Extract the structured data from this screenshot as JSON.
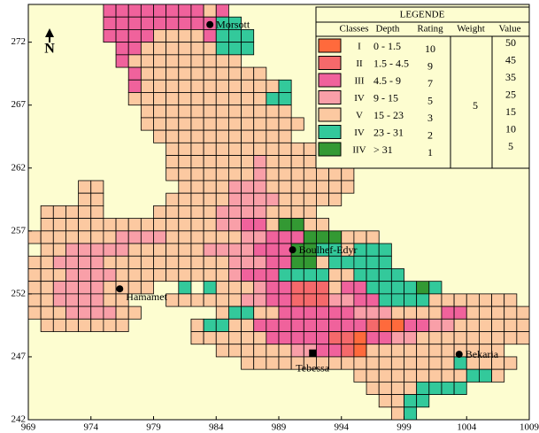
{
  "map": {
    "xlim": [
      969,
      1009
    ],
    "ylim": [
      242,
      275
    ],
    "xticks": [
      969,
      974,
      979,
      984,
      989,
      994,
      999,
      1004,
      1009
    ],
    "yticks": [
      242,
      247,
      252,
      257,
      262,
      267,
      272
    ],
    "north": "N",
    "legend": {
      "title": "LEGENDE",
      "headers": [
        "Classes",
        "Depth",
        "Rating",
        "Weight",
        "Value"
      ],
      "weight": 5,
      "rows": [
        {
          "class": "I",
          "depth": "0 - 1.5",
          "rating": 10,
          "value": 50,
          "color": "#ff6a3c"
        },
        {
          "class": "II",
          "depth": "1.5 - 4.5",
          "rating": 9,
          "value": 45,
          "color": "#f5696b"
        },
        {
          "class": "III",
          "depth": "4.5 - 9",
          "rating": 7,
          "value": 35,
          "color": "#f0629c"
        },
        {
          "class": "IV",
          "depth": "9 - 15",
          "rating": 5,
          "value": 25,
          "color": "#f99fa8"
        },
        {
          "class": "V",
          "depth": "15 - 23",
          "rating": 3,
          "value": 15,
          "color": "#fcc9a1"
        },
        {
          "class": "IV",
          "depth": "23 - 31",
          "rating": 2,
          "value": 10,
          "color": "#33c99b"
        },
        {
          "class": "IIV",
          "depth": "> 31",
          "rating": 1,
          "value": 5,
          "color": "#339933"
        }
      ]
    },
    "grid": [
      {
        "y": 274,
        "x0": 975,
        "cells": "3333333353"
      },
      {
        "y": 273,
        "x0": 975,
        "cells": "33333333366"
      },
      {
        "y": 272,
        "x0": 975,
        "cells": "333355553666"
      },
      {
        "y": 271,
        "x0": 976,
        "cells": "33555555666"
      },
      {
        "y": 270,
        "x0": 976,
        "cells": "3555555555"
      },
      {
        "y": 269,
        "x0": 977,
        "cells": "35555555555"
      },
      {
        "y": 268,
        "x0": 977,
        "cells": "3555555555556"
      },
      {
        "y": 267,
        "x0": 977,
        "cells": "5555555555566"
      },
      {
        "y": 266,
        "x0": 978,
        "cells": "555555555555"
      },
      {
        "y": 265,
        "x0": 978,
        "cells": "5555555555555"
      },
      {
        "y": 264,
        "x0": 979,
        "cells": "55555555555"
      },
      {
        "y": 263,
        "x0": 980,
        "cells": "5555555555555"
      },
      {
        "y": 262,
        "x0": 980,
        "cells": "55555554555555"
      },
      {
        "y": 261,
        "x0": 980,
        "cells": "555555545555555"
      },
      {
        "y": 260,
        "x0": 973,
        "cells": "55......55554445555555"
      },
      {
        "y": 259,
        "x0": 973,
        "cells": "55.....55555444455555"
      },
      {
        "y": 258,
        "x0": 970,
        "cells": "55555....5555544445555"
      },
      {
        "y": 257,
        "x0": 970,
        "cells": "55555555555555443357755"
      },
      {
        "y": 256,
        "x0": 969,
        "cells": "5555555444455555544333777555"
      },
      {
        "y": 255,
        "x0": 970,
        "cells": "5544444555555444433377665666"
      },
      {
        "y": 254,
        "x0": 969,
        "cells": "55444455555555554443377566666"
      },
      {
        "y": 253,
        "x0": 969,
        "cells": "555444455555555543336666556666"
      },
      {
        "y": 252,
        "x0": 969,
        "cells": "5544445555..6.6555433222533666676"
      },
      {
        "y": 251,
        "x0": 969,
        "cells": "55444455...5555554433222443366665555555"
      },
      {
        "y": 250,
        "x0": 969,
        "cells": "555444455......5665533333344455553355555"
      },
      {
        "y": 249,
        "x0": 970,
        "cells": "5555555.....566553333333332113344555555"
      },
      {
        "y": 248,
        "x0": 982,
        "cells": "555555333332213344555555555"
      },
      {
        "y": 247,
        "x0": 984,
        "cells": "55555544332155555555555"
      },
      {
        "y": 246,
        "x0": 986,
        "cells": "5555555555555555565555"
      },
      {
        "y": 245,
        "x0": 995,
        "cells": "555555555665"
      },
      {
        "y": 244,
        "x0": 996,
        "cells": "55556666"
      },
      {
        "y": 243,
        "x0": 997,
        "cells": "5566"
      },
      {
        "y": 242,
        "x0": 998,
        "cells": "56"
      }
    ],
    "places": [
      {
        "name": "Morsott",
        "x": 983.5,
        "y": 273.4,
        "marker": "circle"
      },
      {
        "name": "Boulhef-Edyr",
        "x": 990.1,
        "y": 255.5,
        "marker": "circle"
      },
      {
        "name": "Hamamet",
        "x": 976.3,
        "y": 252.4,
        "marker": "circle"
      },
      {
        "name": "Tebessa",
        "x": 991.7,
        "y": 247.3,
        "marker": "square"
      },
      {
        "name": "Bekaria",
        "x": 1003.4,
        "y": 247.2,
        "marker": "circle"
      }
    ]
  }
}
